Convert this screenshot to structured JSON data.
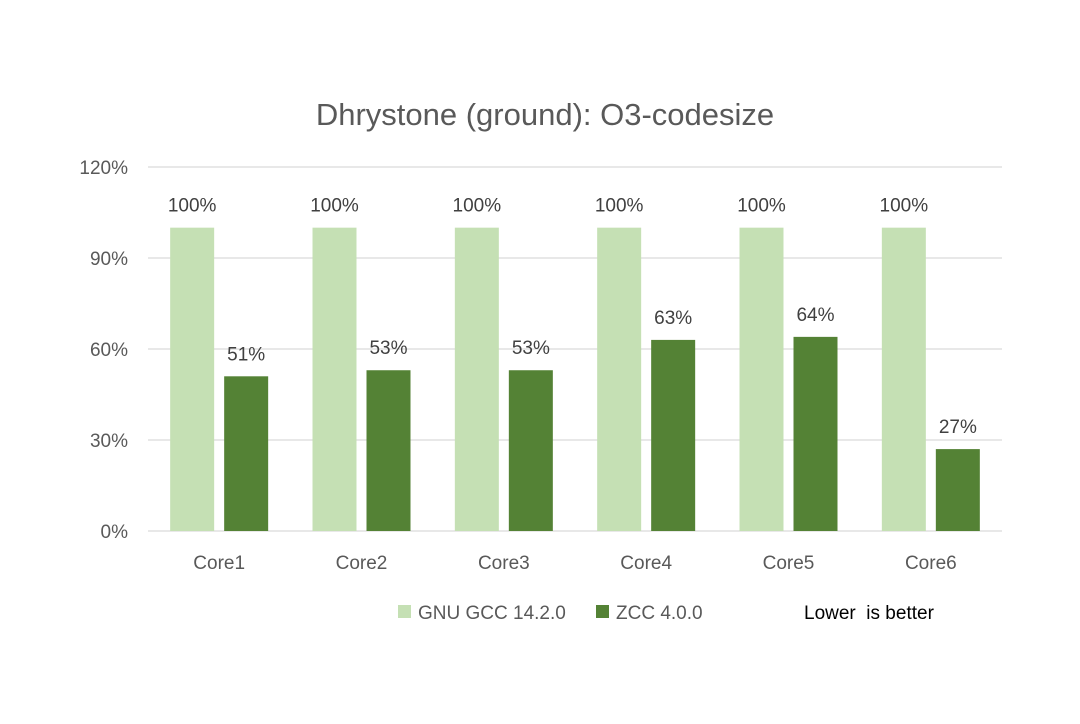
{
  "chart_data": {
    "type": "bar",
    "title": "Dhrystone (ground): O3-codesize",
    "xlabel": "",
    "ylabel": "",
    "categories": [
      "Core1",
      "Core2",
      "Core3",
      "Core4",
      "Core5",
      "Core6"
    ],
    "series": [
      {
        "name": "GNU GCC 14.2.0",
        "color": "#c5e0b4",
        "values": [
          100,
          100,
          100,
          100,
          100,
          100
        ],
        "labels": [
          "100%",
          "100%",
          "100%",
          "100%",
          "100%",
          "100%"
        ]
      },
      {
        "name": "ZCC 4.0.0",
        "color": "#548235",
        "values": [
          51,
          53,
          53,
          63,
          64,
          27
        ],
        "labels": [
          "51%",
          "53%",
          "53%",
          "63%",
          "64%",
          "27%"
        ]
      }
    ],
    "ylim": [
      0,
      120
    ],
    "yticks": [
      0,
      30,
      60,
      90,
      120
    ],
    "ytick_labels": [
      "0%",
      "30%",
      "60%",
      "90%",
      "120%"
    ],
    "grid": true,
    "legend_position": "bottom",
    "annotation": "Lower  is better"
  }
}
